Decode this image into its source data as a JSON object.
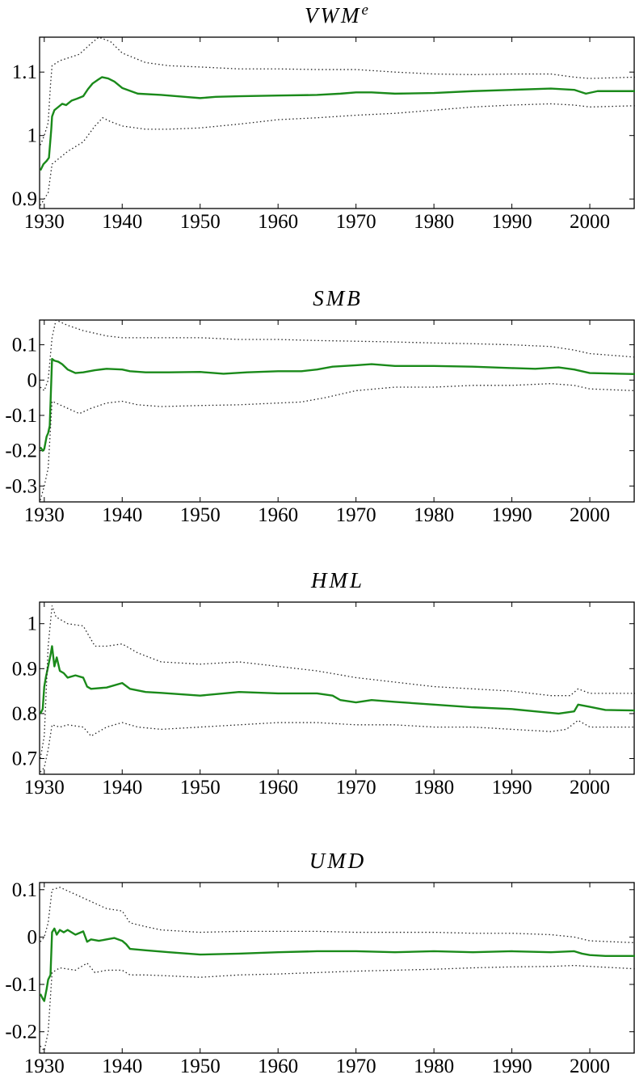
{
  "chart_data": [
    {
      "type": "line",
      "title": "VWMe",
      "title_base": "VWM",
      "title_sup": "e",
      "xlim": [
        1929.4,
        2005.8
      ],
      "ylim": [
        0.885,
        1.155
      ],
      "xticks": [
        1930,
        1940,
        1950,
        1960,
        1970,
        1980,
        1990,
        2000
      ],
      "xtick_labels": [
        "1930",
        "1940",
        "1950",
        "1960",
        "1970",
        "1980",
        "1990",
        "2000"
      ],
      "yticks": [
        0.9,
        1.0,
        1.1
      ],
      "ytick_labels": [
        "0.9",
        "1",
        "1.1"
      ],
      "series": [
        {
          "style": "solid-green",
          "x": [
            1929.5,
            1929.9,
            1930.3,
            1930.6,
            1930.9,
            1931.0,
            1931.3,
            1931.8,
            1932.3,
            1932.8,
            1933.5,
            1934.2,
            1935.0,
            1935.6,
            1936.2,
            1936.9,
            1937.4,
            1938.2,
            1939.0,
            1940.0,
            1942.0,
            1945.0,
            1948.0,
            1950.0,
            1952.0,
            1955.0,
            1960.0,
            1965.0,
            1968.0,
            1970.0,
            1972.0,
            1975.0,
            1980.0,
            1985.0,
            1990.0,
            1995.0,
            1998.0,
            1999.5,
            2001.0,
            2005.8
          ],
          "y": [
            0.945,
            0.955,
            0.96,
            0.965,
            1.01,
            1.03,
            1.04,
            1.045,
            1.05,
            1.048,
            1.055,
            1.058,
            1.062,
            1.073,
            1.082,
            1.088,
            1.092,
            1.09,
            1.085,
            1.075,
            1.066,
            1.064,
            1.061,
            1.059,
            1.061,
            1.062,
            1.063,
            1.064,
            1.066,
            1.068,
            1.068,
            1.066,
            1.067,
            1.07,
            1.072,
            1.074,
            1.072,
            1.066,
            1.07,
            1.07
          ]
        },
        {
          "style": "dotted-upper",
          "x": [
            1929.5,
            1930.0,
            1930.5,
            1930.8,
            1931.0,
            1932.0,
            1933.0,
            1934.5,
            1936.0,
            1937.0,
            1938.5,
            1940.0,
            1943.0,
            1946.0,
            1950.0,
            1955.0,
            1960.0,
            1965.0,
            1970.0,
            1975.0,
            1980.0,
            1985.0,
            1990.0,
            1995.0,
            1998.0,
            2000.0,
            2005.8
          ],
          "y": [
            0.985,
            1.0,
            1.02,
            1.08,
            1.11,
            1.118,
            1.122,
            1.128,
            1.145,
            1.155,
            1.148,
            1.13,
            1.115,
            1.11,
            1.108,
            1.105,
            1.105,
            1.104,
            1.104,
            1.1,
            1.097,
            1.096,
            1.097,
            1.097,
            1.092,
            1.09,
            1.092
          ]
        },
        {
          "style": "dotted-lower",
          "x": [
            1929.5,
            1930.0,
            1930.5,
            1931.0,
            1932.0,
            1933.0,
            1935.0,
            1936.5,
            1937.5,
            1938.5,
            1940.0,
            1943.0,
            1946.0,
            1950.0,
            1955.0,
            1960.0,
            1965.0,
            1970.0,
            1975.0,
            1980.0,
            1985.0,
            1990.0,
            1995.0,
            1998.0,
            2000.0,
            2005.8
          ],
          "y": [
            0.89,
            0.9,
            0.91,
            0.955,
            0.965,
            0.975,
            0.99,
            1.015,
            1.028,
            1.022,
            1.015,
            1.01,
            1.01,
            1.012,
            1.018,
            1.025,
            1.028,
            1.032,
            1.035,
            1.04,
            1.045,
            1.048,
            1.05,
            1.048,
            1.045,
            1.047
          ]
        }
      ]
    },
    {
      "type": "line",
      "title": "SMB",
      "xlim": [
        1929.4,
        2005.8
      ],
      "ylim": [
        -0.345,
        0.17
      ],
      "xticks": [
        1930,
        1940,
        1950,
        1960,
        1970,
        1980,
        1990,
        2000
      ],
      "xtick_labels": [
        "1930",
        "1940",
        "1950",
        "1960",
        "1970",
        "1980",
        "1990",
        "2000"
      ],
      "yticks": [
        -0.3,
        -0.2,
        -0.1,
        0,
        0.1
      ],
      "ytick_labels": [
        "-0.3",
        "-0.2",
        "-0.1",
        "0",
        "0.1"
      ],
      "series": [
        {
          "style": "solid-green",
          "x": [
            1929.5,
            1929.8,
            1930.0,
            1930.3,
            1930.5,
            1930.7,
            1931.0,
            1931.3,
            1931.8,
            1932.3,
            1933.0,
            1934.0,
            1935.0,
            1936.5,
            1938.0,
            1940.0,
            1941.0,
            1943.0,
            1946.0,
            1950.0,
            1953.0,
            1956.0,
            1960.0,
            1963.0,
            1965.0,
            1967.0,
            1970.0,
            1972.0,
            1975.0,
            1980.0,
            1985.0,
            1990.0,
            1993.0,
            1996.0,
            1998.0,
            2000.0,
            2005.8
          ],
          "y": [
            -0.19,
            -0.2,
            -0.195,
            -0.16,
            -0.15,
            -0.13,
            0.06,
            0.055,
            0.052,
            0.045,
            0.03,
            0.02,
            0.022,
            0.028,
            0.032,
            0.03,
            0.025,
            0.022,
            0.022,
            0.023,
            0.018,
            0.022,
            0.025,
            0.025,
            0.03,
            0.038,
            0.042,
            0.045,
            0.04,
            0.04,
            0.038,
            0.034,
            0.032,
            0.036,
            0.03,
            0.02,
            0.017
          ]
        },
        {
          "style": "dotted-upper",
          "x": [
            1929.5,
            1930.0,
            1930.5,
            1931.0,
            1931.5,
            1933.0,
            1935.0,
            1938.0,
            1940.0,
            1945.0,
            1950.0,
            1955.0,
            1960.0,
            1965.0,
            1970.0,
            1975.0,
            1980.0,
            1985.0,
            1990.0,
            1995.0,
            1998.0,
            2000.0,
            2005.8
          ],
          "y": [
            -0.02,
            -0.03,
            0.0,
            0.12,
            0.17,
            0.155,
            0.14,
            0.125,
            0.12,
            0.12,
            0.12,
            0.115,
            0.115,
            0.112,
            0.11,
            0.108,
            0.105,
            0.103,
            0.1,
            0.095,
            0.085,
            0.075,
            0.065
          ]
        },
        {
          "style": "dotted-lower",
          "x": [
            1929.5,
            1930.0,
            1930.5,
            1931.0,
            1932.0,
            1933.0,
            1934.5,
            1936.0,
            1938.0,
            1940.0,
            1942.0,
            1945.0,
            1950.0,
            1955.0,
            1960.0,
            1963.0,
            1966.0,
            1970.0,
            1975.0,
            1980.0,
            1985.0,
            1990.0,
            1995.0,
            1998.0,
            2000.0,
            2005.8
          ],
          "y": [
            -0.34,
            -0.3,
            -0.25,
            -0.06,
            -0.07,
            -0.08,
            -0.095,
            -0.08,
            -0.065,
            -0.06,
            -0.07,
            -0.075,
            -0.072,
            -0.07,
            -0.065,
            -0.062,
            -0.05,
            -0.03,
            -0.02,
            -0.02,
            -0.015,
            -0.015,
            -0.01,
            -0.015,
            -0.025,
            -0.03
          ]
        }
      ]
    },
    {
      "type": "line",
      "title": "HML",
      "xlim": [
        1929.4,
        2005.8
      ],
      "ylim": [
        0.665,
        1.048
      ],
      "xticks": [
        1930,
        1940,
        1950,
        1960,
        1970,
        1980,
        1990,
        2000
      ],
      "xtick_labels": [
        "1930",
        "1940",
        "1950",
        "1960",
        "1970",
        "1980",
        "1990",
        "2000"
      ],
      "yticks": [
        0.7,
        0.8,
        0.9,
        1.0
      ],
      "ytick_labels": [
        "0.7",
        "0.8",
        "0.9",
        "1"
      ],
      "series": [
        {
          "style": "solid-green",
          "x": [
            1929.5,
            1929.8,
            1930.0,
            1930.2,
            1930.5,
            1930.8,
            1931.0,
            1931.3,
            1931.6,
            1932.0,
            1932.5,
            1933.0,
            1934.0,
            1935.0,
            1935.5,
            1936.0,
            1938.0,
            1940.0,
            1941.0,
            1943.0,
            1945.0,
            1950.0,
            1955.0,
            1960.0,
            1965.0,
            1967.0,
            1968.0,
            1970.0,
            1972.0,
            1975.0,
            1980.0,
            1985.0,
            1990.0,
            1993.0,
            1996.0,
            1998.0,
            1998.5,
            2000.0,
            2002.0,
            2005.8
          ],
          "y": [
            0.8,
            0.81,
            0.86,
            0.88,
            0.905,
            0.93,
            0.95,
            0.905,
            0.925,
            0.895,
            0.89,
            0.88,
            0.885,
            0.88,
            0.86,
            0.855,
            0.858,
            0.868,
            0.855,
            0.848,
            0.846,
            0.84,
            0.848,
            0.845,
            0.845,
            0.84,
            0.83,
            0.825,
            0.83,
            0.826,
            0.82,
            0.814,
            0.81,
            0.805,
            0.8,
            0.805,
            0.82,
            0.815,
            0.808,
            0.807
          ]
        },
        {
          "style": "dotted-upper",
          "x": [
            1929.5,
            1930.0,
            1930.5,
            1931.0,
            1931.5,
            1933.0,
            1935.0,
            1936.5,
            1938.0,
            1940.0,
            1942.0,
            1945.0,
            1950.0,
            1955.0,
            1960.0,
            1965.0,
            1970.0,
            1975.0,
            1980.0,
            1985.0,
            1990.0,
            1995.0,
            1997.5,
            1998.5,
            2000.0,
            2005.8
          ],
          "y": [
            0.7,
            0.75,
            0.95,
            1.04,
            1.015,
            1.0,
            0.995,
            0.95,
            0.95,
            0.955,
            0.935,
            0.915,
            0.91,
            0.915,
            0.905,
            0.895,
            0.88,
            0.87,
            0.86,
            0.855,
            0.85,
            0.84,
            0.84,
            0.855,
            0.845,
            0.845
          ]
        },
        {
          "style": "dotted-lower",
          "x": [
            1929.5,
            1930.0,
            1930.5,
            1931.0,
            1932.0,
            1933.0,
            1935.0,
            1936.0,
            1938.0,
            1940.0,
            1942.0,
            1945.0,
            1950.0,
            1955.0,
            1960.0,
            1965.0,
            1970.0,
            1975.0,
            1980.0,
            1985.0,
            1990.0,
            1995.0,
            1997.0,
            1998.5,
            2000.0,
            2005.8
          ],
          "y": [
            0.67,
            0.68,
            0.72,
            0.775,
            0.77,
            0.775,
            0.77,
            0.75,
            0.77,
            0.78,
            0.77,
            0.765,
            0.77,
            0.775,
            0.78,
            0.78,
            0.775,
            0.775,
            0.77,
            0.77,
            0.765,
            0.76,
            0.765,
            0.785,
            0.77,
            0.77
          ]
        }
      ]
    },
    {
      "type": "line",
      "title": "UMD",
      "xlim": [
        1929.4,
        2005.8
      ],
      "ylim": [
        -0.245,
        0.115
      ],
      "xticks": [
        1930,
        1940,
        1950,
        1960,
        1970,
        1980,
        1990,
        2000
      ],
      "xtick_labels": [
        "1930",
        "1940",
        "1950",
        "1960",
        "1970",
        "1980",
        "1990",
        "2000"
      ],
      "yticks": [
        -0.2,
        -0.1,
        0,
        0.1
      ],
      "ytick_labels": [
        "-0.2",
        "-0.1",
        "0",
        "0.1"
      ],
      "series": [
        {
          "style": "solid-green",
          "x": [
            1929.5,
            1929.8,
            1930.0,
            1930.3,
            1930.5,
            1930.8,
            1931.0,
            1931.3,
            1931.6,
            1932.0,
            1932.5,
            1933.0,
            1934.0,
            1935.0,
            1935.5,
            1936.0,
            1937.0,
            1938.0,
            1939.0,
            1940.0,
            1940.5,
            1941.0,
            1943.0,
            1946.0,
            1950.0,
            1955.0,
            1960.0,
            1965.0,
            1970.0,
            1975.0,
            1980.0,
            1985.0,
            1990.0,
            1995.0,
            1998.0,
            1999.0,
            2000.0,
            2002.0,
            2005.8
          ],
          "y": [
            -0.12,
            -0.13,
            -0.135,
            -0.11,
            -0.09,
            -0.08,
            0.01,
            0.018,
            0.005,
            0.015,
            0.01,
            0.015,
            0.005,
            0.012,
            -0.01,
            -0.005,
            -0.008,
            -0.005,
            -0.002,
            -0.008,
            -0.015,
            -0.025,
            -0.028,
            -0.032,
            -0.037,
            -0.035,
            -0.032,
            -0.03,
            -0.03,
            -0.032,
            -0.03,
            -0.032,
            -0.03,
            -0.032,
            -0.03,
            -0.035,
            -0.038,
            -0.04,
            -0.04
          ]
        },
        {
          "style": "dotted-upper",
          "x": [
            1929.5,
            1930.0,
            1930.5,
            1931.0,
            1932.0,
            1934.0,
            1936.0,
            1938.0,
            1940.0,
            1941.0,
            1943.0,
            1945.0,
            1950.0,
            1955.0,
            1960.0,
            1965.0,
            1970.0,
            1975.0,
            1980.0,
            1985.0,
            1990.0,
            1995.0,
            1998.0,
            2000.0,
            2005.8
          ],
          "y": [
            -0.01,
            0.0,
            0.03,
            0.1,
            0.105,
            0.09,
            0.075,
            0.06,
            0.055,
            0.03,
            0.022,
            0.015,
            0.01,
            0.012,
            0.012,
            0.012,
            0.01,
            0.01,
            0.01,
            0.008,
            0.008,
            0.005,
            0.0,
            -0.008,
            -0.012
          ]
        },
        {
          "style": "dotted-lower",
          "x": [
            1929.5,
            1930.0,
            1930.5,
            1931.0,
            1932.0,
            1934.0,
            1935.5,
            1936.5,
            1938.0,
            1940.0,
            1941.0,
            1943.0,
            1946.0,
            1950.0,
            1955.0,
            1960.0,
            1965.0,
            1970.0,
            1975.0,
            1980.0,
            1985.0,
            1990.0,
            1995.0,
            1998.0,
            2000.0,
            2005.8
          ],
          "y": [
            -0.23,
            -0.24,
            -0.2,
            -0.075,
            -0.065,
            -0.07,
            -0.055,
            -0.075,
            -0.07,
            -0.07,
            -0.08,
            -0.08,
            -0.082,
            -0.085,
            -0.08,
            -0.078,
            -0.075,
            -0.072,
            -0.07,
            -0.068,
            -0.065,
            -0.063,
            -0.062,
            -0.06,
            -0.062,
            -0.067
          ]
        }
      ]
    }
  ]
}
